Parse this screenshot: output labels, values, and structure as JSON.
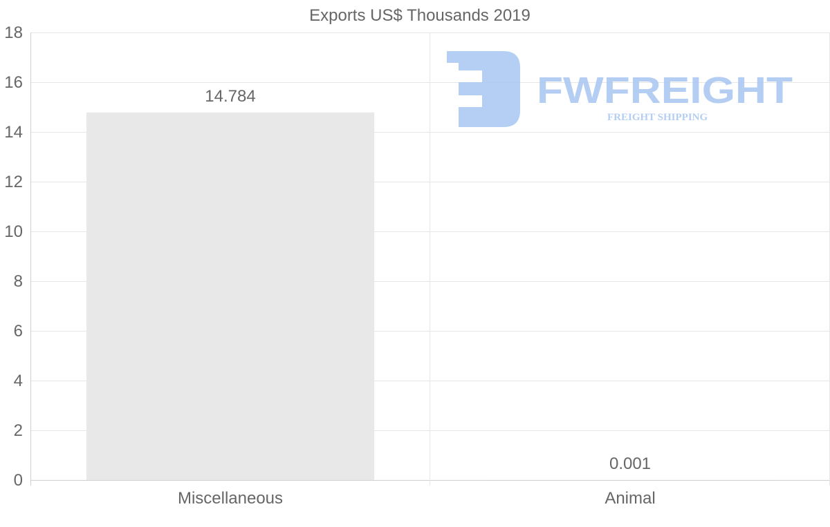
{
  "chart_data": {
    "type": "bar",
    "title": "Exports US$ Thousands 2019",
    "categories": [
      "Miscellaneous",
      "Animal"
    ],
    "values": [
      14.784,
      0.001
    ],
    "data_labels": [
      "14.784",
      "0.001"
    ],
    "xlabel": "",
    "ylabel": "",
    "ylim": [
      0,
      18
    ],
    "yticks": [
      0,
      2,
      4,
      6,
      8,
      10,
      12,
      14,
      16,
      18
    ],
    "grid": true,
    "bar_color": "#e8e8e8"
  },
  "watermark": {
    "brand": "FWFREIGHT",
    "tagline": "FREIGHT SHIPPING",
    "color": "#a8c6f2"
  }
}
